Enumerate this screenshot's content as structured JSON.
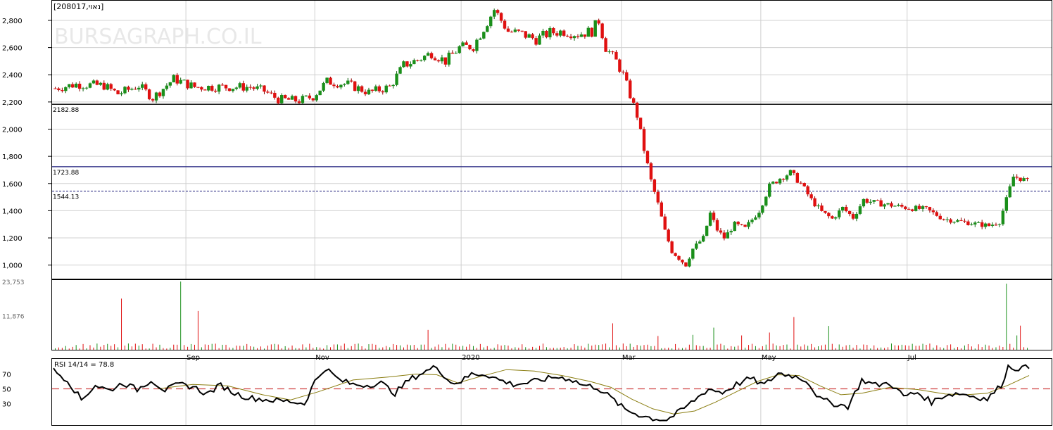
{
  "chart_data": {
    "type": "candlestick",
    "symbol_label": "[208017,נאוי]",
    "watermark": "BURSAGRAPH.CO.IL",
    "price_axis": {
      "ylim": [
        900,
        2950
      ],
      "ticks": [
        1000,
        1200,
        1400,
        1600,
        1800,
        2000,
        2200,
        2400,
        2600,
        2800
      ],
      "tick_labels": [
        "1,000",
        "1,200",
        "1,400",
        "1,600",
        "1,800",
        "2,000",
        "2,200",
        "2,400",
        "2,600",
        "2,800"
      ]
    },
    "reference_lines": [
      {
        "label": "2182.88",
        "value": 2182.88,
        "style": "solid",
        "color": "#000000"
      },
      {
        "label": "1723.88",
        "value": 1723.88,
        "style": "solid",
        "color": "#1a1a7a"
      },
      {
        "label": "1544.13",
        "value": 1544.13,
        "style": "dashed",
        "color": "#1a1a7a"
      }
    ],
    "x_axis": {
      "month_labels": [
        {
          "label": "Sep",
          "index": 38
        },
        {
          "label": "Nov",
          "index": 75
        },
        {
          "label": "2020",
          "index": 117
        },
        {
          "label": "Mar",
          "index": 163
        },
        {
          "label": "May",
          "index": 203
        },
        {
          "label": "Jul",
          "index": 245
        }
      ],
      "bar_count": 280
    },
    "price_path": [
      [
        0,
        2300
      ],
      [
        6,
        2330
      ],
      [
        14,
        2320
      ],
      [
        18,
        2260
      ],
      [
        24,
        2320
      ],
      [
        28,
        2230
      ],
      [
        34,
        2370
      ],
      [
        40,
        2310
      ],
      [
        48,
        2310
      ],
      [
        56,
        2310
      ],
      [
        60,
        2280
      ],
      [
        64,
        2220
      ],
      [
        70,
        2210
      ],
      [
        74,
        2240
      ],
      [
        78,
        2350
      ],
      [
        84,
        2330
      ],
      [
        90,
        2270
      ],
      [
        96,
        2310
      ],
      [
        100,
        2470
      ],
      [
        104,
        2510
      ],
      [
        108,
        2560
      ],
      [
        112,
        2500
      ],
      [
        116,
        2600
      ],
      [
        120,
        2610
      ],
      [
        124,
        2790
      ],
      [
        126,
        2880
      ],
      [
        130,
        2720
      ],
      [
        134,
        2700
      ],
      [
        138,
        2660
      ],
      [
        142,
        2710
      ],
      [
        146,
        2720
      ],
      [
        150,
        2700
      ],
      [
        154,
        2720
      ],
      [
        156,
        2800
      ],
      [
        158,
        2600
      ],
      [
        161,
        2500
      ],
      [
        163,
        2400
      ],
      [
        165,
        2250
      ],
      [
        167,
        2100
      ],
      [
        169,
        1850
      ],
      [
        171,
        1620
      ],
      [
        173,
        1450
      ],
      [
        175,
        1250
      ],
      [
        177,
        1100
      ],
      [
        179,
        1050
      ],
      [
        181,
        1000
      ],
      [
        183,
        1120
      ],
      [
        186,
        1200
      ],
      [
        188,
        1380
      ],
      [
        190,
        1260
      ],
      [
        192,
        1200
      ],
      [
        195,
        1300
      ],
      [
        198,
        1270
      ],
      [
        202,
        1400
      ],
      [
        205,
        1580
      ],
      [
        208,
        1640
      ],
      [
        211,
        1680
      ],
      [
        214,
        1600
      ],
      [
        217,
        1480
      ],
      [
        220,
        1390
      ],
      [
        223,
        1340
      ],
      [
        226,
        1420
      ],
      [
        229,
        1350
      ],
      [
        232,
        1480
      ],
      [
        235,
        1460
      ],
      [
        240,
        1440
      ],
      [
        245,
        1420
      ],
      [
        250,
        1410
      ],
      [
        255,
        1340
      ],
      [
        260,
        1320
      ],
      [
        265,
        1300
      ],
      [
        268,
        1290
      ],
      [
        271,
        1320
      ],
      [
        273,
        1480
      ],
      [
        275,
        1650
      ],
      [
        277,
        1640
      ],
      [
        280,
        1600
      ]
    ],
    "volume_axis": {
      "ylim": [
        0,
        23753
      ],
      "tick_labels": [
        "23,753",
        "11,876"
      ],
      "ticks": [
        23753,
        11876
      ],
      "spikes": [
        [
          19,
          17800
        ],
        [
          36,
          23753
        ],
        [
          41,
          13500
        ],
        [
          107,
          6900
        ],
        [
          160,
          9200
        ],
        [
          173,
          4800
        ],
        [
          183,
          5200
        ],
        [
          189,
          7700
        ],
        [
          197,
          5000
        ],
        [
          205,
          6000
        ],
        [
          212,
          11400
        ],
        [
          222,
          8300
        ],
        [
          273,
          23000
        ],
        [
          277,
          8400
        ],
        [
          276,
          5000
        ]
      ]
    },
    "rsi": {
      "label": "RSI 14/14 = 78.8",
      "ylim": [
        0,
        100
      ],
      "ticks": [
        30,
        50,
        70
      ],
      "tick_labels": [
        "30",
        "50",
        "70"
      ],
      "reference_level": 50,
      "rsi_points": [
        [
          0,
          75
        ],
        [
          4,
          62
        ],
        [
          8,
          35
        ],
        [
          12,
          55
        ],
        [
          16,
          48
        ],
        [
          20,
          58
        ],
        [
          24,
          49
        ],
        [
          28,
          62
        ],
        [
          32,
          48
        ],
        [
          36,
          56
        ],
        [
          40,
          53
        ],
        [
          44,
          43
        ],
        [
          48,
          55
        ],
        [
          52,
          44
        ],
        [
          56,
          38
        ],
        [
          60,
          36
        ],
        [
          64,
          34
        ],
        [
          68,
          33
        ],
        [
          72,
          30
        ],
        [
          75,
          60
        ],
        [
          78,
          78
        ],
        [
          82,
          62
        ],
        [
          86,
          56
        ],
        [
          90,
          55
        ],
        [
          94,
          58
        ],
        [
          98,
          44
        ],
        [
          102,
          62
        ],
        [
          106,
          72
        ],
        [
          110,
          80
        ],
        [
          114,
          58
        ],
        [
          117,
          60
        ],
        [
          120,
          70
        ],
        [
          124,
          70
        ],
        [
          128,
          62
        ],
        [
          132,
          56
        ],
        [
          136,
          58
        ],
        [
          140,
          62
        ],
        [
          144,
          66
        ],
        [
          148,
          64
        ],
        [
          152,
          55
        ],
        [
          156,
          52
        ],
        [
          160,
          38
        ],
        [
          164,
          22
        ],
        [
          168,
          15
        ],
        [
          172,
          10
        ],
        [
          176,
          8
        ],
        [
          180,
          20
        ],
        [
          184,
          35
        ],
        [
          188,
          50
        ],
        [
          192,
          45
        ],
        [
          196,
          56
        ],
        [
          200,
          64
        ],
        [
          204,
          55
        ],
        [
          208,
          71
        ],
        [
          212,
          68
        ],
        [
          216,
          62
        ],
        [
          220,
          36
        ],
        [
          224,
          30
        ],
        [
          228,
          26
        ],
        [
          232,
          62
        ],
        [
          236,
          55
        ],
        [
          240,
          58
        ],
        [
          244,
          40
        ],
        [
          248,
          45
        ],
        [
          252,
          32
        ],
        [
          256,
          42
        ],
        [
          260,
          44
        ],
        [
          264,
          40
        ],
        [
          268,
          36
        ],
        [
          272,
          55
        ],
        [
          274,
          80
        ],
        [
          276,
          78
        ],
        [
          280,
          78.8
        ]
      ],
      "signal_points": [
        [
          30,
          50
        ],
        [
          40,
          56
        ],
        [
          50,
          54
        ],
        [
          60,
          42
        ],
        [
          68,
          35
        ],
        [
          76,
          46
        ],
        [
          86,
          62
        ],
        [
          96,
          66
        ],
        [
          104,
          70
        ],
        [
          110,
          69
        ],
        [
          116,
          58
        ],
        [
          122,
          66
        ],
        [
          130,
          76
        ],
        [
          138,
          74
        ],
        [
          146,
          68
        ],
        [
          154,
          60
        ],
        [
          160,
          52
        ],
        [
          166,
          36
        ],
        [
          172,
          23
        ],
        [
          178,
          16
        ],
        [
          184,
          20
        ],
        [
          190,
          32
        ],
        [
          196,
          46
        ],
        [
          202,
          60
        ],
        [
          208,
          69
        ],
        [
          214,
          68
        ],
        [
          220,
          54
        ],
        [
          226,
          42
        ],
        [
          232,
          44
        ],
        [
          240,
          52
        ],
        [
          248,
          49
        ],
        [
          256,
          43
        ],
        [
          262,
          42
        ],
        [
          268,
          44
        ],
        [
          274,
          55
        ],
        [
          280,
          68
        ]
      ]
    }
  }
}
